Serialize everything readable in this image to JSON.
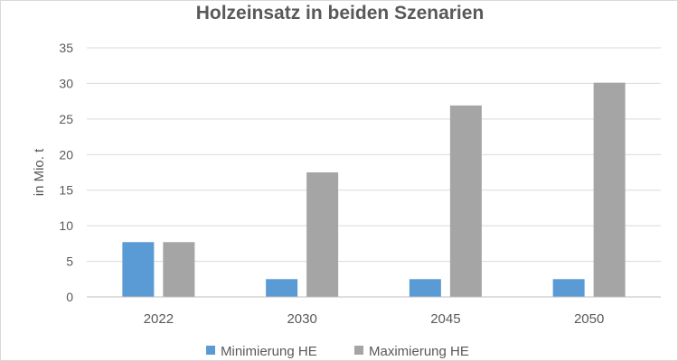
{
  "chart_data": {
    "type": "bar",
    "title": "Holzeinsatz in beiden Szenarien",
    "xlabel": "",
    "ylabel": "in Mio. t",
    "categories": [
      "2022",
      "2030",
      "2045",
      "2050"
    ],
    "series": [
      {
        "name": "Minimierung HE",
        "color": "#5B9BD5",
        "values": [
          7.7,
          2.5,
          2.5,
          2.5
        ]
      },
      {
        "name": "Maximierung HE",
        "color": "#A5A5A5",
        "values": [
          7.7,
          17.5,
          26.9,
          30.1
        ]
      }
    ],
    "ylim": [
      0,
      35
    ],
    "yticks": [
      0,
      5,
      10,
      15,
      20,
      25,
      30,
      35
    ],
    "grid": true,
    "legend_position": "bottom",
    "colors": {
      "grid": "#d9d9d9",
      "axis": "#bfbfbf",
      "text": "#595959"
    }
  }
}
